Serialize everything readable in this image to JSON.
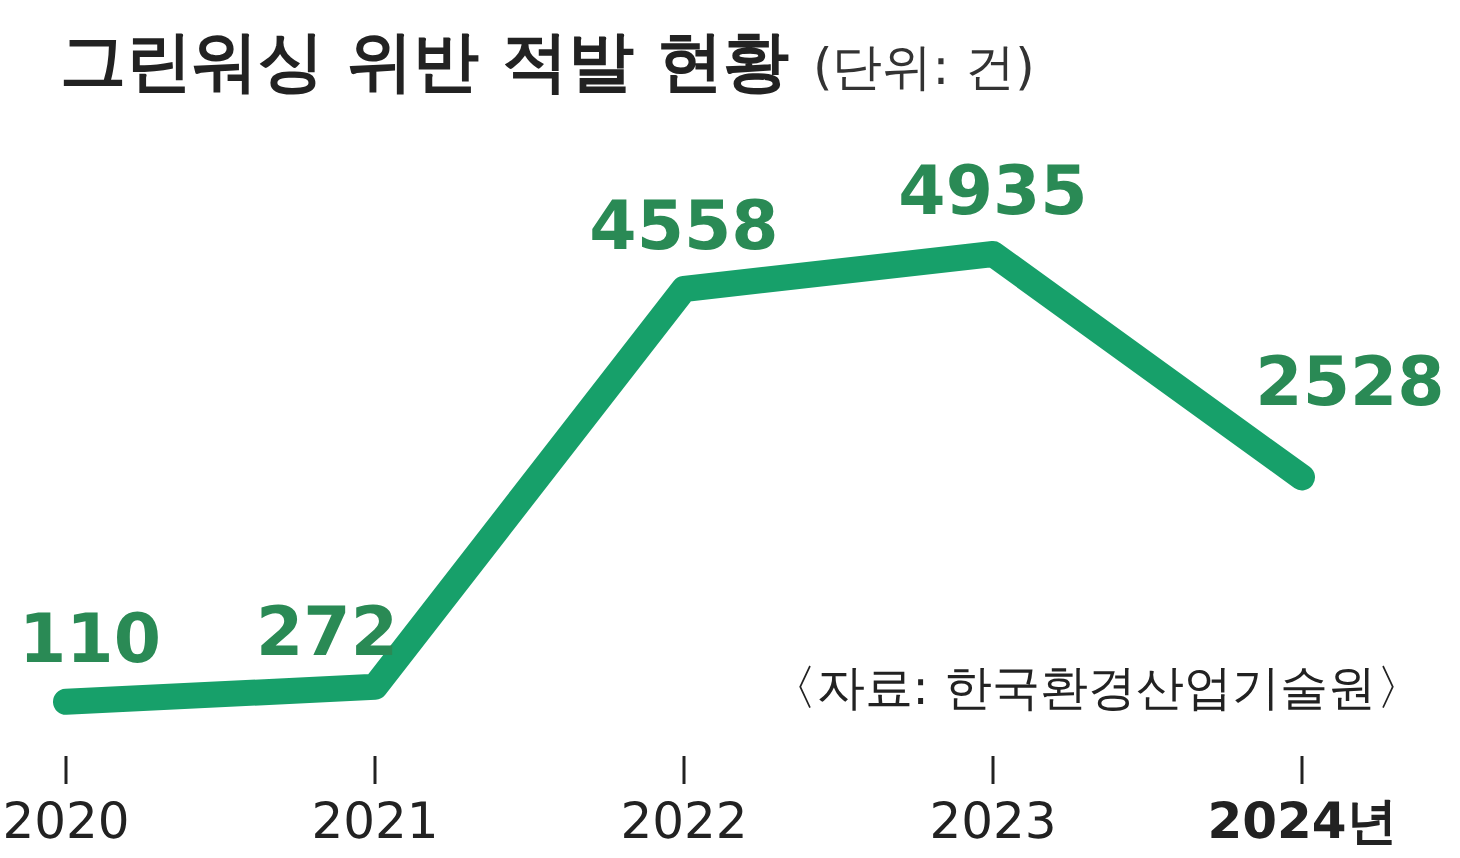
{
  "chart_data": {
    "type": "line",
    "title": "그린워싱 위반 적발 현황",
    "subtitle": "(단위: 건)",
    "categories": [
      "2020",
      "2021",
      "2022",
      "2023",
      "2024년"
    ],
    "series": [
      {
        "color": "#17a06a",
        "values": [
          110,
          272,
          4558,
          4935,
          2528
        ]
      }
    ],
    "data_labels": true,
    "annotations": [
      "〈자료: 한국환경산업기술원〉"
    ]
  }
}
